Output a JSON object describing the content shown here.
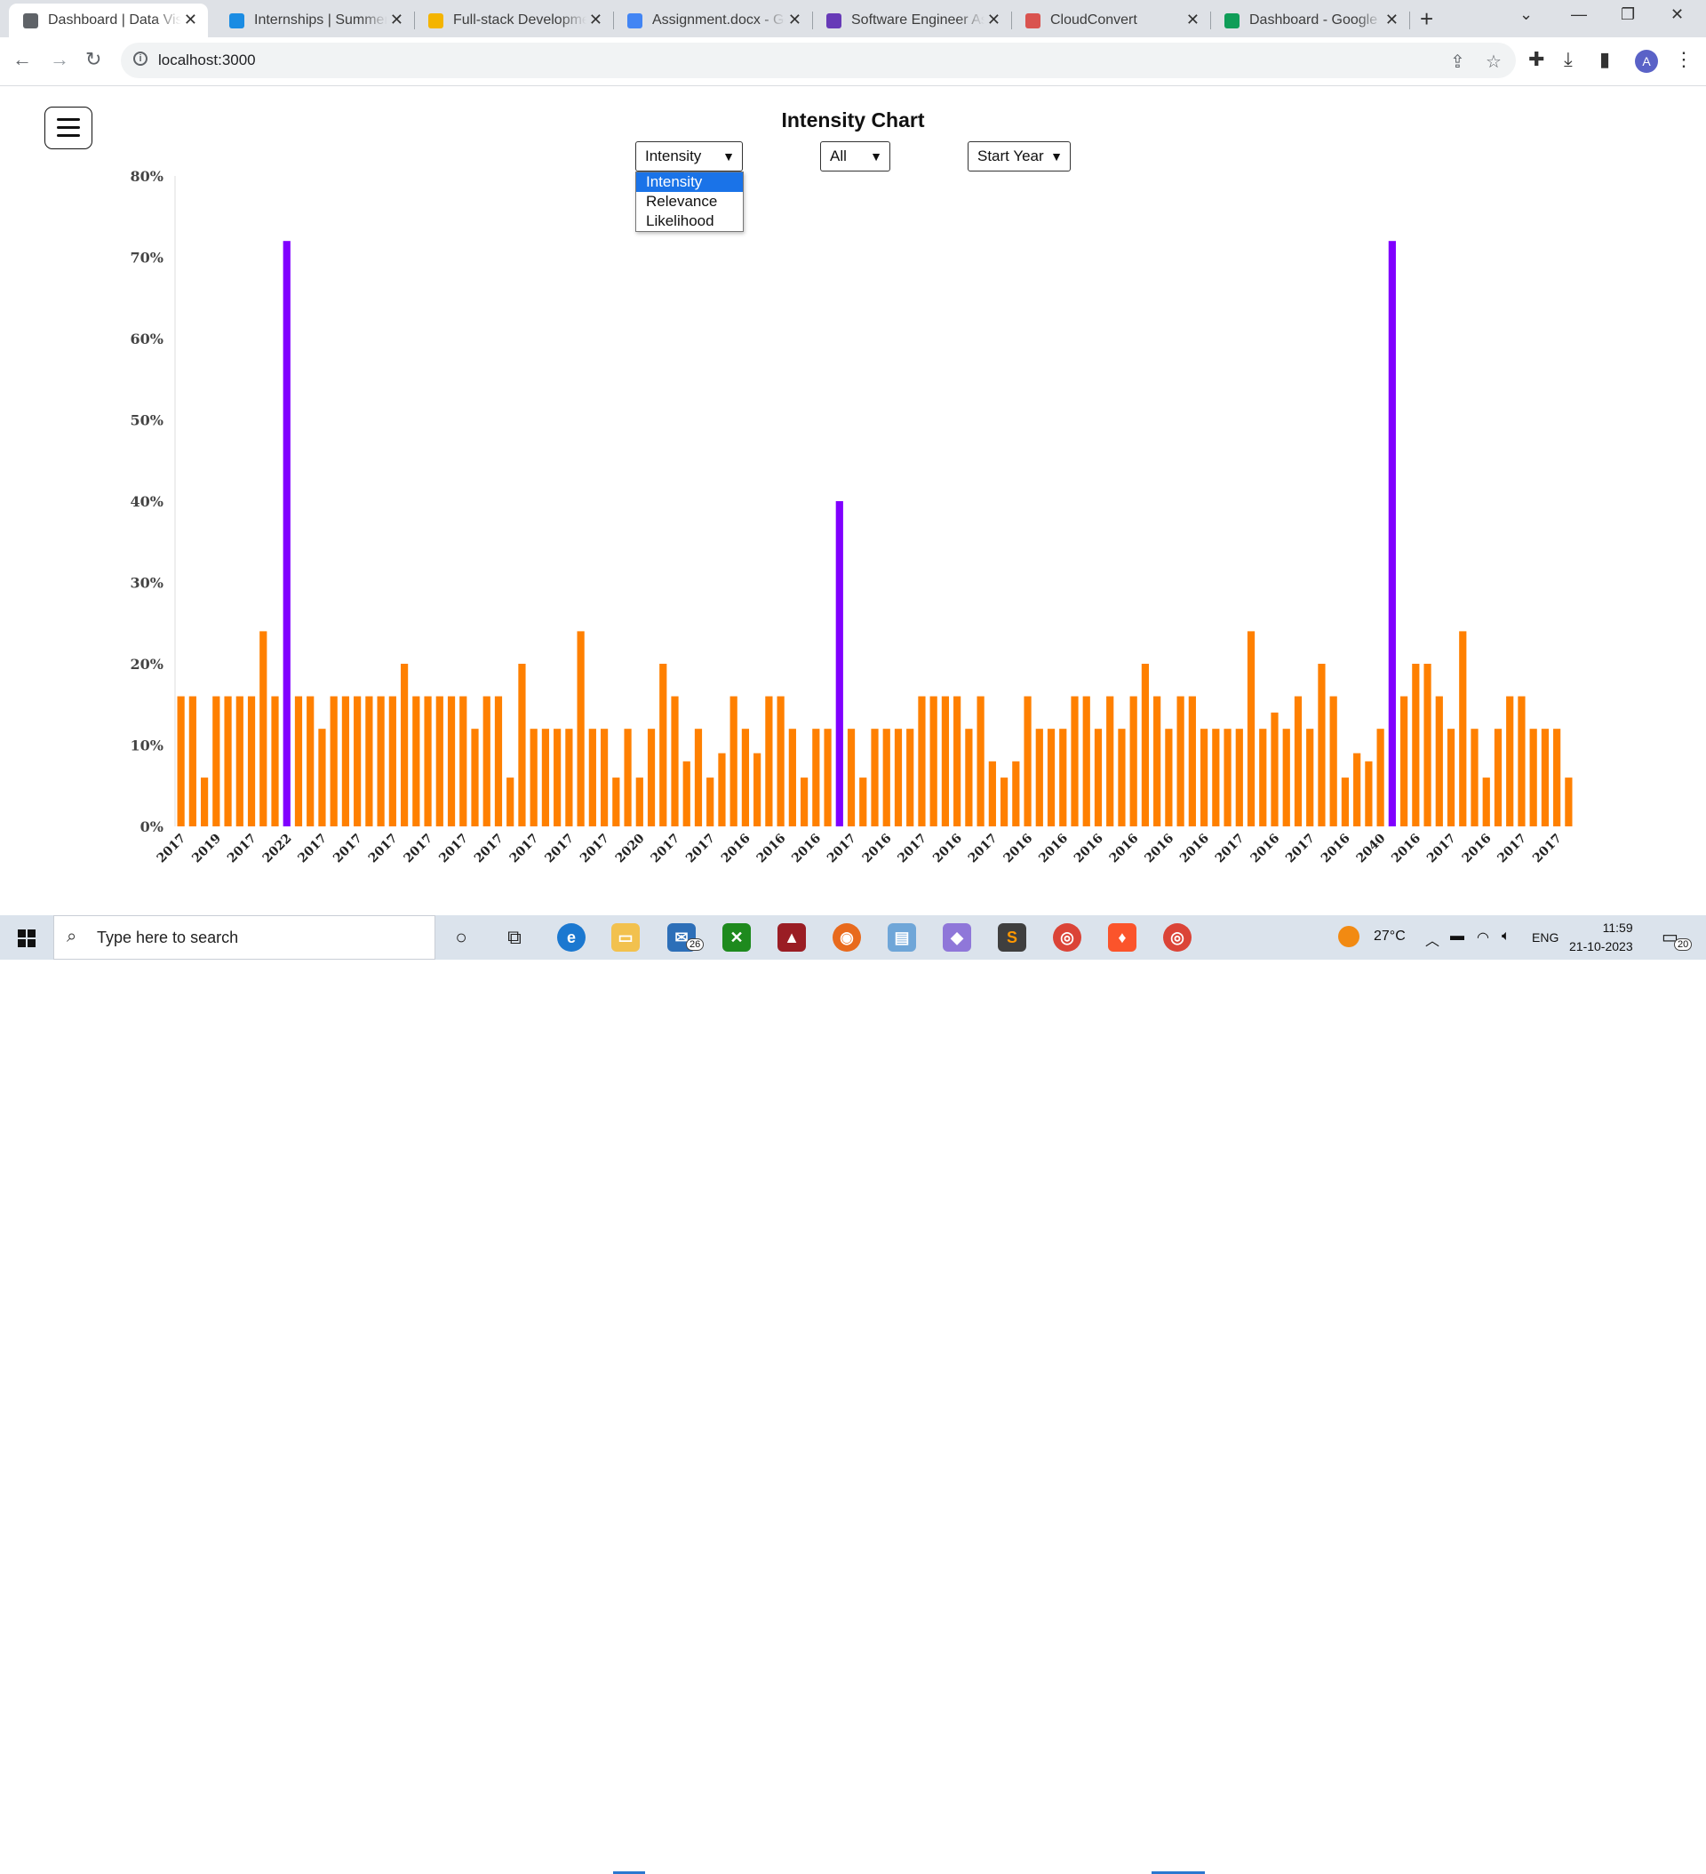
{
  "browser": {
    "tabs": [
      {
        "title": "Dashboard | Data Vis",
        "active": true,
        "favicon_icon": "globe-icon",
        "favicon_color": "#5f6368"
      },
      {
        "title": "Internships | Summer",
        "active": false,
        "favicon_icon": "internshala-icon",
        "favicon_color": "#1b8ce3"
      },
      {
        "title": "Full-stack Developme",
        "active": false,
        "favicon_icon": "google-drive-icon",
        "favicon_color": "#f4b400"
      },
      {
        "title": "Assignment.docx - Go",
        "active": false,
        "favicon_icon": "google-docs-icon",
        "favicon_color": "#4285f4"
      },
      {
        "title": "Software Engineer As",
        "active": false,
        "favicon_icon": "google-forms-icon",
        "favicon_color": "#673ab7"
      },
      {
        "title": "CloudConvert",
        "active": false,
        "favicon_icon": "cloud-icon",
        "favicon_color": "#d9534f"
      },
      {
        "title": "Dashboard - Google",
        "active": false,
        "favicon_icon": "google-drive-icon",
        "favicon_color": "#0f9d58"
      }
    ],
    "url": "localhost:3000"
  },
  "page": {
    "title": "Intensity Chart",
    "metric_select": {
      "value": "Intensity",
      "options": [
        "Intensity",
        "Relevance",
        "Likelihood"
      ]
    },
    "filter_select": {
      "value": "All"
    },
    "year_select": {
      "value": "Start Year"
    }
  },
  "chart_data": {
    "type": "bar",
    "title": "Intensity Chart",
    "ylim": [
      0,
      80
    ],
    "yticks": [
      "0%",
      "10%",
      "20%",
      "30%",
      "40%",
      "50%",
      "60%",
      "70%",
      "80%"
    ],
    "colors": {
      "default": "#ff8000",
      "highlight": "#8000ff"
    },
    "highlight_indices": [
      9,
      56,
      103
    ],
    "values": [
      16,
      16,
      6,
      16,
      16,
      16,
      16,
      24,
      16,
      72,
      16,
      16,
      12,
      16,
      16,
      16,
      16,
      16,
      16,
      20,
      16,
      16,
      16,
      16,
      16,
      12,
      16,
      16,
      6,
      20,
      12,
      12,
      12,
      12,
      24,
      12,
      12,
      6,
      12,
      6,
      12,
      20,
      16,
      8,
      12,
      6,
      9,
      16,
      12,
      9,
      16,
      16,
      12,
      6,
      12,
      12,
      40,
      12,
      6,
      12,
      12,
      12,
      12,
      16,
      16,
      16,
      16,
      12,
      16,
      8,
      6,
      8,
      16,
      12,
      12,
      12,
      16,
      16,
      12,
      16,
      12,
      16,
      20,
      16,
      12,
      16,
      16,
      12,
      12,
      12,
      12,
      24,
      12,
      14,
      12,
      16,
      12,
      20,
      16,
      6,
      9,
      8,
      12,
      72,
      16,
      20,
      20,
      16,
      12,
      24,
      12,
      6,
      12,
      16,
      16,
      12,
      12,
      12,
      6
    ],
    "x_tick_labels": [
      "2017",
      "2019",
      "2017",
      "2022",
      "2017",
      "2017",
      "2017",
      "2017",
      "2017",
      "2017",
      "2017",
      "2017",
      "2017",
      "2020",
      "2017",
      "2017",
      "2016",
      "2016",
      "2016",
      "2017",
      "2016",
      "2017",
      "2016",
      "2017",
      "2016",
      "2016",
      "2016",
      "2016",
      "2016",
      "2016",
      "2017",
      "2016",
      "2017",
      "2016",
      "2040",
      "2016",
      "2017",
      "2016",
      "2017",
      "2017"
    ]
  },
  "taskbar": {
    "search_placeholder": "Type here to search",
    "mail_badge": "26",
    "weather": "27°C",
    "language": "ENG",
    "time": "11:59",
    "date": "21-10-2023",
    "notification_count": "20"
  }
}
